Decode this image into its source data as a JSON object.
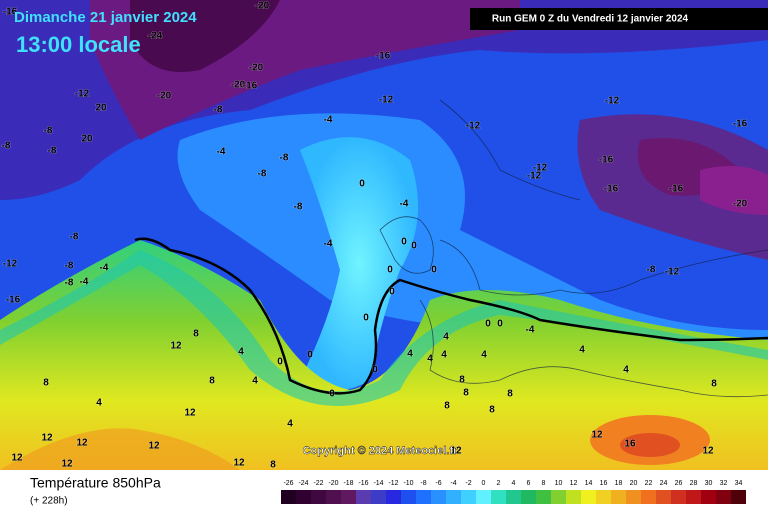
{
  "header": {
    "date": "Dimanche 21 janvier 2024",
    "time": "13:00 locale",
    "run": "Run GEM 0 Z du Vendredi 12 janvier 2024"
  },
  "map": {
    "copyright": "Copyright © 2024 Meteociel.fr",
    "contour_labels": [
      -16,
      -20,
      -24,
      -16,
      -20,
      -20,
      -16,
      -12,
      20,
      -20,
      -8,
      -12,
      -12,
      -8,
      20,
      -8,
      -8,
      -4,
      -12,
      -4,
      -8,
      -8,
      0,
      -12,
      -12,
      -16,
      -16,
      -16,
      -16,
      -20,
      -8,
      -4,
      -8,
      -4,
      0,
      0,
      -12,
      -8,
      -4,
      -8,
      -4,
      -16,
      0,
      0,
      -8,
      -12,
      0,
      0,
      0,
      0,
      -4,
      12,
      8,
      4,
      0,
      0,
      0,
      4,
      4,
      4,
      4,
      4,
      4,
      8,
      4,
      8,
      4,
      8,
      8,
      4,
      8,
      8,
      8,
      8,
      0,
      12,
      4,
      12,
      12,
      12,
      12,
      16,
      12,
      12,
      12,
      8,
      12,
      12
    ]
  },
  "legend": {
    "title": "Température 850hPa",
    "subtitle": "(+ 228h)",
    "scale": {
      "values": [
        -26,
        -24,
        -22,
        -20,
        -18,
        -16,
        -14,
        -12,
        -10,
        -8,
        -6,
        -4,
        -2,
        0,
        2,
        4,
        6,
        8,
        10,
        12,
        14,
        16,
        18,
        20,
        22,
        24,
        26,
        28,
        30,
        32,
        34
      ],
      "colors": [
        "#200020",
        "#300030",
        "#400840",
        "#501050",
        "#601860",
        "#5a3cb0",
        "#3c3cc8",
        "#2828e0",
        "#1e50f0",
        "#2070ff",
        "#2890ff",
        "#30b0ff",
        "#40d0ff",
        "#60f0ff",
        "#30e0c0",
        "#20c890",
        "#20b860",
        "#40c040",
        "#80d030",
        "#c0e020",
        "#f0f020",
        "#f0d020",
        "#f0b020",
        "#f09020",
        "#f07020",
        "#e05020",
        "#d03020",
        "#c01818",
        "#a00010",
        "#800010",
        "#500008"
      ]
    }
  }
}
